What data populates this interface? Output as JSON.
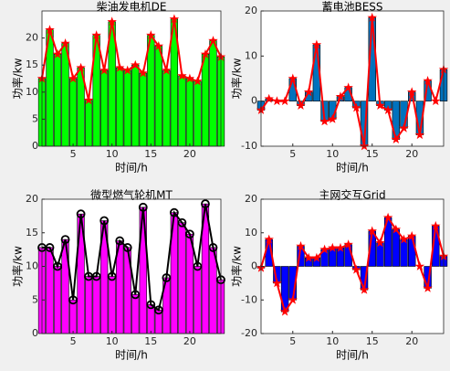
{
  "chart_data": [
    {
      "type": "bar_line",
      "title": "柴油发电机DE",
      "xlabel": "时间/h",
      "ylabel": "功率/kw",
      "x": [
        1,
        2,
        3,
        4,
        5,
        6,
        7,
        8,
        9,
        10,
        11,
        12,
        13,
        14,
        15,
        16,
        17,
        18,
        19,
        20,
        21,
        22,
        23,
        24
      ],
      "values": [
        12.5,
        21.5,
        17,
        19,
        12.5,
        14.5,
        8.5,
        20.5,
        14,
        23,
        14.5,
        14,
        15,
        13.5,
        20.5,
        18.5,
        14,
        23.5,
        13,
        12.5,
        12,
        17,
        19.5,
        16.5
      ],
      "xlim": [
        1,
        24
      ],
      "xticks": [
        5,
        10,
        15,
        20
      ],
      "ylim": [
        0,
        25
      ],
      "yticks": [
        0,
        5,
        10,
        15,
        20
      ],
      "bar_color": "#00ff00",
      "line_color": "#ff0000",
      "marker": "star"
    },
    {
      "type": "bar_line",
      "title": "蓄电池BESS",
      "xlabel": "时间/h",
      "ylabel": "功率/kw",
      "x": [
        1,
        2,
        3,
        4,
        5,
        6,
        7,
        8,
        9,
        10,
        11,
        12,
        13,
        14,
        15,
        16,
        17,
        18,
        19,
        20,
        21,
        22,
        23,
        24
      ],
      "values": [
        -2,
        0.5,
        0,
        0,
        5,
        -1,
        2,
        12.5,
        -4.5,
        -4,
        1,
        3,
        -1.5,
        -10,
        18.5,
        -1,
        -2,
        -8.5,
        -6,
        2,
        -7.5,
        4.5,
        0,
        7
      ],
      "xlim": [
        1,
        24
      ],
      "xticks": [
        5,
        10,
        15,
        20
      ],
      "ylim": [
        -10,
        20
      ],
      "yticks": [
        -10,
        0,
        10,
        20
      ],
      "bar_color": "#0072bd",
      "line_color": "#ff0000",
      "marker": "star"
    },
    {
      "type": "bar_line",
      "title": "微型燃气轮机MT",
      "xlabel": "时间/h",
      "ylabel": "功率/kw",
      "x": [
        1,
        2,
        3,
        4,
        5,
        6,
        7,
        8,
        9,
        10,
        11,
        12,
        13,
        14,
        15,
        16,
        17,
        18,
        19,
        20,
        21,
        22,
        23,
        24
      ],
      "values": [
        12.8,
        12.8,
        10,
        14,
        5,
        17.8,
        8.5,
        8.5,
        16.8,
        8.5,
        13.8,
        12.8,
        5.8,
        18.8,
        4.3,
        3.5,
        8.3,
        18,
        16.5,
        14.8,
        10,
        19.3,
        12.8,
        8
      ],
      "xlim": [
        1,
        24
      ],
      "xticks": [
        5,
        10,
        15,
        20
      ],
      "ylim": [
        0,
        20
      ],
      "yticks": [
        0,
        5,
        10,
        15,
        20
      ],
      "bar_color": "#ff00ff",
      "line_color": "#000000",
      "marker": "circle"
    },
    {
      "type": "bar_line",
      "title": "主网交互Grid",
      "xlabel": "时间/h",
      "ylabel": "功率/kw",
      "x": [
        1,
        2,
        3,
        4,
        5,
        6,
        7,
        8,
        9,
        10,
        11,
        12,
        13,
        14,
        15,
        16,
        17,
        18,
        19,
        20,
        21,
        22,
        23,
        24
      ],
      "values": [
        -0.5,
        8,
        -5,
        -13.5,
        -10,
        6,
        2.5,
        2.5,
        5,
        5.5,
        5.5,
        6.5,
        -1,
        -7,
        10.5,
        7,
        14.5,
        11,
        8,
        9,
        0,
        -6.5,
        12,
        3
      ],
      "xlim": [
        1,
        24
      ],
      "xticks": [
        5,
        10,
        15,
        20
      ],
      "ylim": [
        -20,
        20
      ],
      "yticks": [
        -20,
        -10,
        0,
        10,
        20
      ],
      "bar_color": "#0000ff",
      "line_color": "#ff0000",
      "marker": "star"
    }
  ]
}
